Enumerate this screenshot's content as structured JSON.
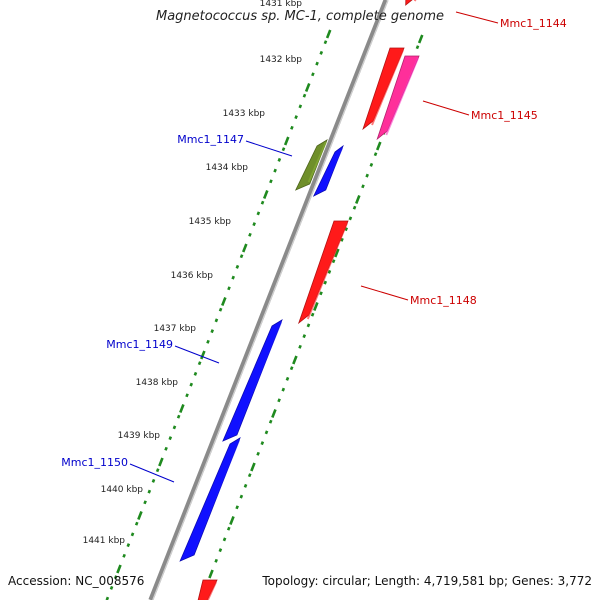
{
  "title": "Magnetococcus sp. MC-1, complete genome",
  "footer": {
    "accession": "Accession: NC_008576",
    "summary": "Topology: circular; Length: 4,719,581 bp; Genes: 3,772"
  },
  "colors": {
    "background": "#ffffff",
    "backbone": "#8a8a8a",
    "ticks": "#1f8a1f",
    "forward_gene": "#ff1a1a",
    "forward_gene_alt": "#ff2f9a",
    "reverse_gene": "#1010ff",
    "reverse_gene_alt": "#6f8f2a",
    "forward_label": "#cc0000",
    "reverse_label": "#0000cc"
  },
  "ruler": [
    {
      "label": "1431 kbp"
    },
    {
      "label": "1432 kbp"
    },
    {
      "label": "1433 kbp"
    },
    {
      "label": "1434 kbp"
    },
    {
      "label": "1435 kbp"
    },
    {
      "label": "1436 kbp"
    },
    {
      "label": "1437 kbp"
    },
    {
      "label": "1438 kbp"
    },
    {
      "label": "1439 kbp"
    },
    {
      "label": "1440 kbp"
    },
    {
      "label": "1441 kbp"
    }
  ],
  "genes": [
    {
      "name": "Mmc1_1144",
      "strand": "forward",
      "color": "#ff1a1a"
    },
    {
      "name": "Mmc1_1145",
      "strand": "forward",
      "color": "#ff2f9a"
    },
    {
      "name": "Mmc1_1147",
      "strand": "reverse",
      "color": "#6f8f2a"
    },
    {
      "name": "Mmc1_1148",
      "strand": "forward",
      "color": "#ff1a1a"
    },
    {
      "name": "Mmc1_1149",
      "strand": "reverse",
      "color": "#1010ff"
    },
    {
      "name": "Mmc1_1150",
      "strand": "reverse",
      "color": "#1010ff"
    }
  ]
}
